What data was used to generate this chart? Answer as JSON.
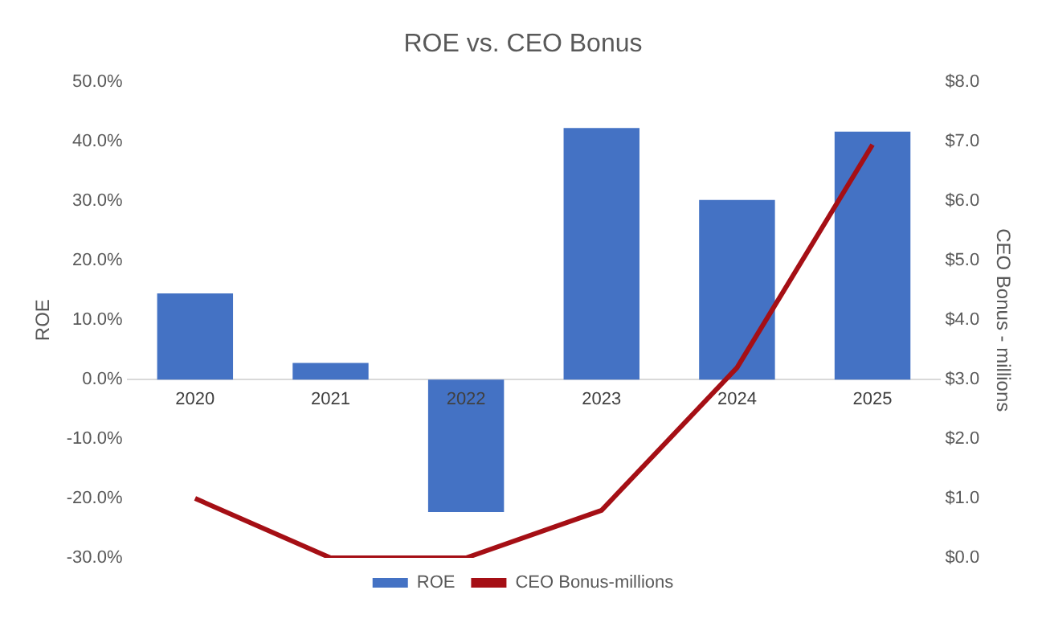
{
  "chart_data": {
    "type": "bar",
    "title": "ROE vs. CEO Bonus",
    "ylabel": "ROE",
    "y2label": "CEO Bonus - millions",
    "categories": [
      "2020",
      "2021",
      "2022",
      "2023",
      "2024",
      "2025"
    ],
    "series": [
      {
        "name": "ROE",
        "color": "#4472c4",
        "values": [
          14.5,
          2.8,
          -22.3,
          42.3,
          30.2,
          41.7
        ]
      },
      {
        "name": "CEO Bonus-millions",
        "type": "line",
        "axis": "y2",
        "color": "#a50f15",
        "values": [
          1.0,
          0.0,
          0.0,
          0.8,
          3.2,
          6.95
        ]
      }
    ],
    "ylim": [
      -30,
      50
    ],
    "yticks": [
      {
        "value": -30,
        "label": "-30.0%"
      },
      {
        "value": -20,
        "label": "-20.0%"
      },
      {
        "value": -10,
        "label": "-10.0%"
      },
      {
        "value": 0,
        "label": "0.0%"
      },
      {
        "value": 10,
        "label": "10.0%"
      },
      {
        "value": 20,
        "label": "20.0%"
      },
      {
        "value": 30,
        "label": "30.0%"
      },
      {
        "value": 40,
        "label": "40.0%"
      },
      {
        "value": 50,
        "label": "50.0%"
      }
    ],
    "y2lim": [
      0,
      8
    ],
    "y2ticks": [
      {
        "value": 0,
        "label": "$0.0"
      },
      {
        "value": 1,
        "label": "$1.0"
      },
      {
        "value": 2,
        "label": "$2.0"
      },
      {
        "value": 3,
        "label": "$3.0"
      },
      {
        "value": 4,
        "label": "$4.0"
      },
      {
        "value": 5,
        "label": "$5.0"
      },
      {
        "value": 6,
        "label": "$6.0"
      },
      {
        "value": 7,
        "label": "$7.0"
      },
      {
        "value": 8,
        "label": "$8.0"
      }
    ],
    "grid": false,
    "legend": "bottom",
    "marker": "none"
  }
}
